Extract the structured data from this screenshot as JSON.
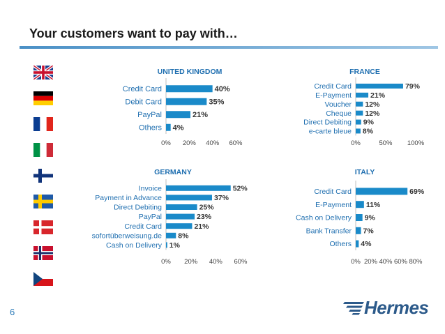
{
  "title": "Your customers want to pay with…",
  "page_number": "6",
  "logo_text": "Hermes",
  "colors": {
    "bar": "#1a8ac9",
    "title_rule": "#4a90c6",
    "panel_title": "#1f6fb0",
    "label": "#1f6fb0",
    "value": "#333333"
  },
  "flags": [
    "uk-flag-icon",
    "germany-flag-icon",
    "france-flag-icon",
    "italy-flag-icon",
    "finland-flag-icon",
    "sweden-flag-icon",
    "denmark-flag-icon",
    "norway-flag-icon",
    "czech-flag-icon"
  ],
  "chart_data": [
    {
      "type": "bar",
      "title": "UNITED KINGDOM",
      "categories": [
        "Credit Card",
        "Debit Card",
        "PayPal",
        "Others"
      ],
      "values": [
        40,
        35,
        21,
        4
      ],
      "value_labels": [
        "40%",
        "35%",
        "21%",
        "4%"
      ],
      "xlim": [
        0,
        60
      ],
      "ticks": [
        "0%",
        "20%",
        "40%",
        "60%"
      ]
    },
    {
      "type": "bar",
      "title": "FRANCE",
      "categories": [
        "Credit Card",
        "E-Payment",
        "Voucher",
        "Cheque",
        "Direct Debiting",
        "e-carte bleue"
      ],
      "values": [
        79,
        21,
        12,
        12,
        9,
        8
      ],
      "value_labels": [
        "79%",
        "21%",
        "12%",
        "12%",
        "9%",
        "8%"
      ],
      "xlim": [
        0,
        100
      ],
      "ticks": [
        "0%",
        "50%",
        "100%"
      ]
    },
    {
      "type": "bar",
      "title": "GERMANY",
      "categories": [
        "Invoice",
        "Payment in Advance",
        "Direct Debiting",
        "PayPal",
        "Credit Card",
        "sofortüberweisung.de",
        "Cash on Delivery"
      ],
      "values": [
        52,
        37,
        25,
        23,
        21,
        8,
        1
      ],
      "value_labels": [
        "52%",
        "37%",
        "25%",
        "23%",
        "21%",
        "8%",
        "1%"
      ],
      "xlim": [
        0,
        60
      ],
      "ticks": [
        "0%",
        "20%",
        "40%",
        "60%"
      ]
    },
    {
      "type": "bar",
      "title": "ITALY",
      "categories": [
        "Credit Card",
        "E-Payment",
        "Cash on Delivery",
        "Bank Transfer",
        "Others"
      ],
      "values": [
        69,
        11,
        9,
        7,
        4
      ],
      "value_labels": [
        "69%",
        "11%",
        "9%",
        "7%",
        "4%"
      ],
      "xlim": [
        0,
        80
      ],
      "ticks": [
        "0%",
        "20%",
        "40%",
        "60%",
        "80%"
      ]
    }
  ]
}
